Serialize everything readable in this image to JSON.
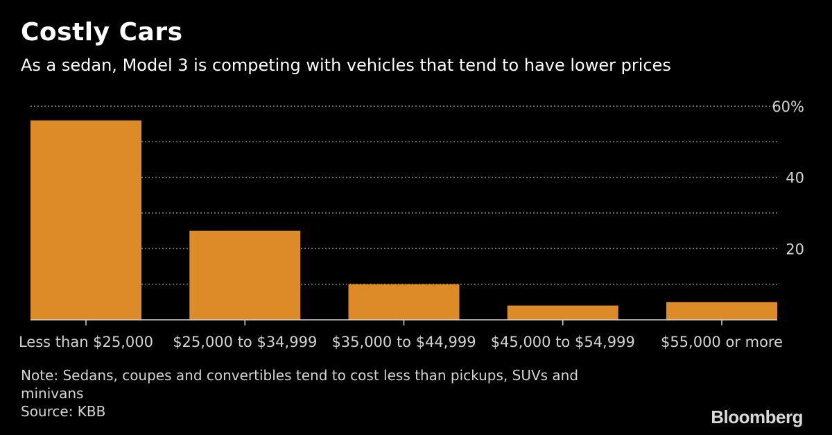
{
  "header": {
    "title": "Costly Cars",
    "subtitle": "As a sedan, Model 3 is competing with vehicles that tend to have lower prices"
  },
  "chart_data": {
    "type": "bar",
    "categories": [
      "Less than $25,000",
      "$25,000 to $34,999",
      "$35,000 to $44,999",
      "$45,000 to $54,999",
      "$55,000 or more"
    ],
    "values": [
      56,
      25,
      10,
      4,
      5
    ],
    "ylim": [
      0,
      60
    ],
    "yticks": [
      0,
      10,
      20,
      30,
      40,
      50,
      60
    ],
    "ytick_labels": [
      {
        "value": 60,
        "label": "60%"
      },
      {
        "value": 40,
        "label": "40"
      },
      {
        "value": 20,
        "label": "20"
      }
    ],
    "grid": true,
    "bar_color": "#dd8b28",
    "gridline_color": "#8a8a8a"
  },
  "footer": {
    "note_line1": "Note: Sedans, coupes and convertibles tend to cost less than pickups, SUVs and",
    "note_line2": "minivans",
    "source": "Source: KBB",
    "brand": "Bloomberg"
  }
}
